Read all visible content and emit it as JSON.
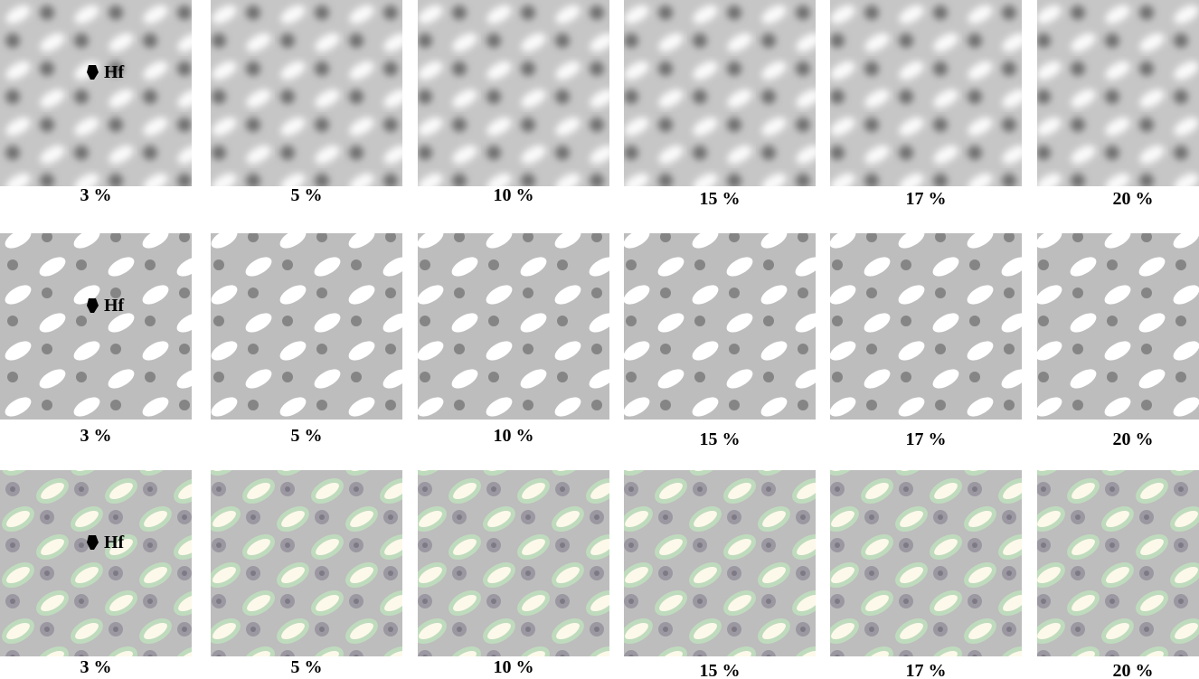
{
  "rows": [
    {
      "labels": [
        "3 %",
        "5 %",
        "10 %",
        "15 %",
        "17 %",
        "20 %"
      ],
      "marker": "Hf"
    },
    {
      "labels": [
        "3 %",
        "5 %",
        "10 %",
        "15 %",
        "17 %",
        "20 %"
      ],
      "marker": "Hf"
    },
    {
      "labels": [
        "3 %",
        "5 %",
        "10 %",
        "15 %",
        "17 %",
        "20 %"
      ],
      "marker": "Hf"
    }
  ]
}
